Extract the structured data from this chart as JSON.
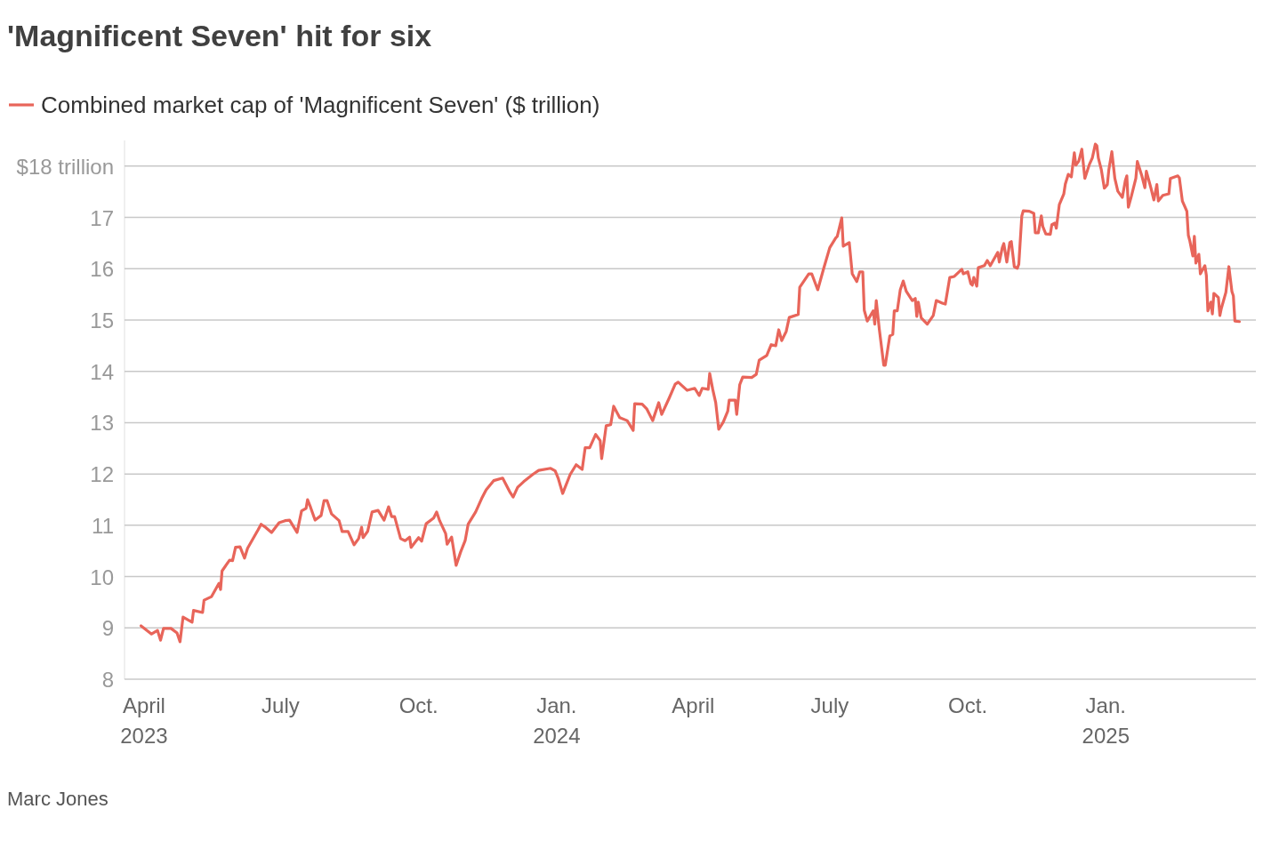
{
  "chart_data": {
    "type": "line",
    "title": "'Magnificent Seven' hit for six",
    "legend": "top left",
    "grid": "y",
    "line_style": "solid",
    "marker": "none",
    "annotations": [
      "Marc Jones"
    ],
    "xlim": [
      "2023-03-19",
      "2025-04-11"
    ],
    "xticks": [
      {
        "value": "2023-04-01",
        "label": "April\n2023"
      },
      {
        "value": "2023-07-01",
        "label": "July"
      },
      {
        "value": "2023-10-01",
        "label": "Oct."
      },
      {
        "value": "2024-01-01",
        "label": "Jan.\n2024"
      },
      {
        "value": "2024-04-01",
        "label": "April"
      },
      {
        "value": "2024-07-01",
        "label": "July"
      },
      {
        "value": "2024-10-01",
        "label": "Oct."
      },
      {
        "value": "2025-01-01",
        "label": "Jan.\n2025"
      }
    ],
    "ylim": [
      8,
      18.5
    ],
    "yticks": [
      8,
      9,
      10,
      11,
      12,
      13,
      14,
      15,
      16,
      17,
      {
        "value": 18,
        "label": "$18 trillion"
      }
    ],
    "series": [
      {
        "name": "Combined market cap of 'Magnificent Seven' ($ trillion)",
        "color": "#e8655a",
        "x": [
          "2023-03-30",
          "2023-04-06",
          "2023-04-10",
          "2023-04-12",
          "2023-04-14",
          "2023-04-19",
          "2023-04-23",
          "2023-04-25",
          "2023-04-27",
          "2023-05-03",
          "2023-05-04",
          "2023-05-10",
          "2023-05-11",
          "2023-05-16",
          "2023-05-21",
          "2023-05-22",
          "2023-05-23",
          "2023-05-28",
          "2023-05-30",
          "2023-06-01",
          "2023-06-04",
          "2023-06-07",
          "2023-06-09",
          "2023-06-16",
          "2023-06-18",
          "2023-06-21",
          "2023-06-25",
          "2023-06-30",
          "2023-07-04",
          "2023-07-07",
          "2023-07-12",
          "2023-07-15",
          "2023-07-18",
          "2023-07-19",
          "2023-07-21",
          "2023-07-24",
          "2023-07-28",
          "2023-07-30",
          "2023-08-01",
          "2023-08-04",
          "2023-08-09",
          "2023-08-11",
          "2023-08-15",
          "2023-08-19",
          "2023-08-22",
          "2023-08-24",
          "2023-08-25",
          "2023-08-28",
          "2023-08-31",
          "2023-09-04",
          "2023-09-08",
          "2023-09-11",
          "2023-09-13",
          "2023-09-15",
          "2023-09-19",
          "2023-09-22",
          "2023-09-25",
          "2023-09-26",
          "2023-10-01",
          "2023-10-03",
          "2023-10-06",
          "2023-10-11",
          "2023-10-13",
          "2023-10-15",
          "2023-10-19",
          "2023-10-20",
          "2023-10-23",
          "2023-10-26",
          "2023-10-29",
          "2023-11-01",
          "2023-11-03",
          "2023-11-08",
          "2023-11-12",
          "2023-11-15",
          "2023-11-20",
          "2023-11-26",
          "2023-12-01",
          "2023-12-03",
          "2023-12-06",
          "2023-12-10",
          "2023-12-16",
          "2023-12-20",
          "2023-12-28",
          "2023-12-31",
          "2024-01-02",
          "2024-01-05",
          "2024-01-10",
          "2024-01-14",
          "2024-01-18",
          "2024-01-20",
          "2024-01-23",
          "2024-01-27",
          "2024-01-30",
          "2024-01-31",
          "2024-02-03",
          "2024-02-06",
          "2024-02-08",
          "2024-02-12",
          "2024-02-17",
          "2024-02-21",
          "2024-02-22",
          "2024-02-27",
          "2024-03-01",
          "2024-03-05",
          "2024-03-09",
          "2024-03-11",
          "2024-03-16",
          "2024-03-20",
          "2024-03-22",
          "2024-03-28",
          "2024-04-02",
          "2024-04-05",
          "2024-04-07",
          "2024-04-11",
          "2024-04-12",
          "2024-04-14",
          "2024-04-16",
          "2024-04-18",
          "2024-04-21",
          "2024-04-24",
          "2024-04-25",
          "2024-04-29",
          "2024-04-30",
          "2024-05-02",
          "2024-05-04",
          "2024-05-10",
          "2024-05-13",
          "2024-05-15",
          "2024-05-20",
          "2024-05-23",
          "2024-05-26",
          "2024-05-28",
          "2024-05-30",
          "2024-06-02",
          "2024-06-04",
          "2024-06-10",
          "2024-06-11",
          "2024-06-17",
          "2024-06-19",
          "2024-06-23",
          "2024-06-27",
          "2024-07-01",
          "2024-07-05",
          "2024-07-06",
          "2024-07-09",
          "2024-07-10",
          "2024-07-14",
          "2024-07-16",
          "2024-07-19",
          "2024-07-21",
          "2024-07-23",
          "2024-07-24",
          "2024-07-26",
          "2024-07-30",
          "2024-07-31",
          "2024-08-01",
          "2024-08-03",
          "2024-08-06",
          "2024-08-07",
          "2024-08-10",
          "2024-08-12",
          "2024-08-13",
          "2024-08-15",
          "2024-08-17",
          "2024-08-19",
          "2024-08-21",
          "2024-08-25",
          "2024-08-27",
          "2024-08-28",
          "2024-08-29",
          "2024-08-31",
          "2024-09-04",
          "2024-09-08",
          "2024-09-10",
          "2024-09-14",
          "2024-09-16",
          "2024-09-19",
          "2024-09-22",
          "2024-09-27",
          "2024-09-28",
          "2024-10-01",
          "2024-10-03",
          "2024-10-04",
          "2024-10-05",
          "2024-10-07",
          "2024-10-08",
          "2024-10-12",
          "2024-10-14",
          "2024-10-16",
          "2024-10-21",
          "2024-10-22",
          "2024-10-24",
          "2024-10-25",
          "2024-10-27",
          "2024-10-29",
          "2024-10-30",
          "2024-11-01",
          "2024-11-03",
          "2024-11-04",
          "2024-11-06",
          "2024-11-07",
          "2024-11-11",
          "2024-11-14",
          "2024-11-15",
          "2024-11-17",
          "2024-11-19",
          "2024-11-20",
          "2024-11-22",
          "2024-11-25",
          "2024-11-26",
          "2024-11-28",
          "2024-11-29",
          "2024-12-01",
          "2024-12-04",
          "2024-12-05",
          "2024-12-07",
          "2024-12-09",
          "2024-12-11",
          "2024-12-12",
          "2024-12-14",
          "2024-12-16",
          "2024-12-18",
          "2024-12-21",
          "2024-12-23",
          "2024-12-25",
          "2024-12-26",
          "2024-12-27",
          "2024-12-29",
          "2024-12-31",
          "2025-01-02",
          "2025-01-03",
          "2025-01-05",
          "2025-01-07",
          "2025-01-09",
          "2025-01-12",
          "2025-01-14",
          "2025-01-15",
          "2025-01-16",
          "2025-01-18",
          "2025-01-21",
          "2025-01-22",
          "2025-01-25",
          "2025-01-27",
          "2025-01-28",
          "2025-01-31",
          "2025-02-02",
          "2025-02-04",
          "2025-02-05",
          "2025-02-08",
          "2025-02-12",
          "2025-02-13",
          "2025-02-18",
          "2025-02-19",
          "2025-02-21",
          "2025-02-24",
          "2025-02-25",
          "2025-02-26",
          "2025-02-28",
          "2025-03-01",
          "2025-03-02",
          "2025-03-04",
          "2025-03-05",
          "2025-03-08",
          "2025-03-09",
          "2025-03-10",
          "2025-03-12",
          "2025-03-13",
          "2025-03-14",
          "2025-03-17",
          "2025-03-18",
          "2025-03-19",
          "2025-03-22",
          "2025-03-24",
          "2025-03-26",
          "2025-03-27",
          "2025-03-28",
          "2025-03-31"
        ],
        "values": [
          9.04,
          8.88,
          8.95,
          8.76,
          8.99,
          8.99,
          8.9,
          8.73,
          9.21,
          9.11,
          9.34,
          9.3,
          9.54,
          9.61,
          9.87,
          9.75,
          10.11,
          10.32,
          10.31,
          10.57,
          10.58,
          10.36,
          10.55,
          10.91,
          11.02,
          10.96,
          10.86,
          11.05,
          11.09,
          11.1,
          10.86,
          11.28,
          11.33,
          11.5,
          11.35,
          11.1,
          11.19,
          11.48,
          11.48,
          11.22,
          11.09,
          10.88,
          10.88,
          10.62,
          10.74,
          10.96,
          10.76,
          10.88,
          11.26,
          11.29,
          11.1,
          11.36,
          11.17,
          11.17,
          10.74,
          10.7,
          10.77,
          10.57,
          10.76,
          10.69,
          11.03,
          11.14,
          11.26,
          11.09,
          10.84,
          10.63,
          10.77,
          10.22,
          10.48,
          10.7,
          11.02,
          11.26,
          11.52,
          11.69,
          11.87,
          11.92,
          11.64,
          11.55,
          11.74,
          11.85,
          11.99,
          12.07,
          12.11,
          12.06,
          11.92,
          11.62,
          11.99,
          12.18,
          12.09,
          12.51,
          12.51,
          12.77,
          12.65,
          12.3,
          12.94,
          12.96,
          13.32,
          13.1,
          13.04,
          12.85,
          13.37,
          13.36,
          13.27,
          13.04,
          13.39,
          13.16,
          13.48,
          13.75,
          13.79,
          13.63,
          13.67,
          13.53,
          13.67,
          13.65,
          13.96,
          13.65,
          13.39,
          12.87,
          13.01,
          13.22,
          13.44,
          13.44,
          13.16,
          13.74,
          13.89,
          13.88,
          13.94,
          14.22,
          14.31,
          14.52,
          14.5,
          14.81,
          14.6,
          14.78,
          15.05,
          15.11,
          15.64,
          15.9,
          15.9,
          15.59,
          16.01,
          16.41,
          16.6,
          16.63,
          16.99,
          16.44,
          16.51,
          15.9,
          15.75,
          15.94,
          15.94,
          15.19,
          14.98,
          15.18,
          14.92,
          15.38,
          14.83,
          14.12,
          14.12,
          14.69,
          14.72,
          15.18,
          15.18,
          15.59,
          15.76,
          15.56,
          15.38,
          15.42,
          15.07,
          15.35,
          15.04,
          14.92,
          15.09,
          15.38,
          15.33,
          15.31,
          15.83,
          15.85,
          15.99,
          15.9,
          15.94,
          15.71,
          15.68,
          15.83,
          15.66,
          16.02,
          16.06,
          16.16,
          16.06,
          16.32,
          16.13,
          16.41,
          16.49,
          16.13,
          16.51,
          16.53,
          16.04,
          16.01,
          16.09,
          17.03,
          17.13,
          17.12,
          17.08,
          16.7,
          16.7,
          17.03,
          16.82,
          16.68,
          16.67,
          16.86,
          16.89,
          16.79,
          17.25,
          17.46,
          17.65,
          17.84,
          17.79,
          18.26,
          18.02,
          18.1,
          18.33,
          17.76,
          18.03,
          18.16,
          18.43,
          18.4,
          18.16,
          17.93,
          17.57,
          17.64,
          17.93,
          18.28,
          17.76,
          17.51,
          17.39,
          17.72,
          17.81,
          17.2,
          17.41,
          17.76,
          18.09,
          17.81,
          17.58,
          17.9,
          17.58,
          17.34,
          17.64,
          17.32,
          17.43,
          17.46,
          17.76,
          17.81,
          17.77,
          17.32,
          17.12,
          16.65,
          16.54,
          16.25,
          16.63,
          16.11,
          16.28,
          15.9,
          16.06,
          15.87,
          15.18,
          15.35,
          15.12,
          15.52,
          15.44,
          15.09,
          15.23,
          15.54,
          16.04,
          15.56,
          15.47,
          14.98,
          14.97
        ]
      }
    ]
  }
}
